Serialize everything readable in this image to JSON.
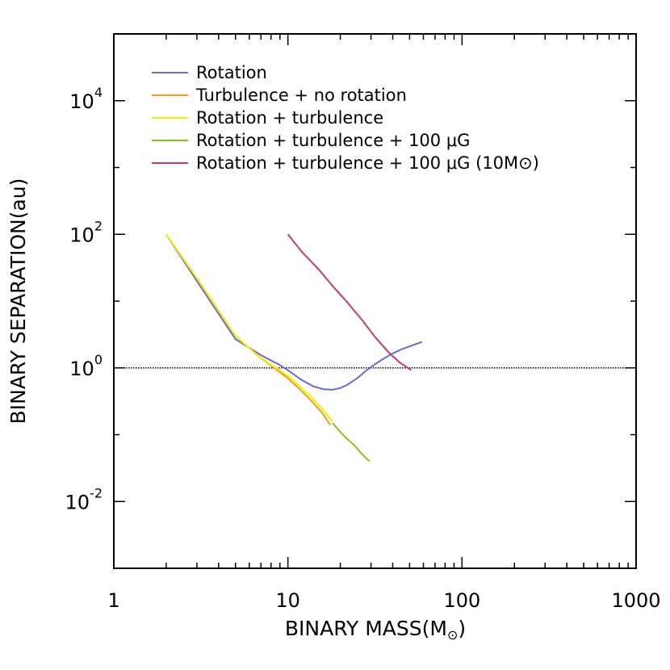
{
  "chart_data": {
    "type": "line",
    "xscale": "log",
    "yscale": "log",
    "xlim": [
      1,
      1000
    ],
    "ylim": [
      0.001,
      100000
    ],
    "xlabel": "BINARY MASS(M",
    "xlabel_symbol": "⊙",
    "xlabel_close": ")",
    "ylabel": "BINARY SEPARATION(au)",
    "x_tick_labels": [
      "1",
      "10",
      "100",
      "1000"
    ],
    "x_tick_values": [
      1,
      10,
      100,
      1000
    ],
    "y_tick_labels": [
      {
        "base": "10",
        "exp": "-2"
      },
      {
        "base": "10",
        "exp": "0"
      },
      {
        "base": "10",
        "exp": "2"
      },
      {
        "base": "10",
        "exp": "4"
      }
    ],
    "y_tick_values": [
      0.01,
      1,
      100,
      10000
    ],
    "reference_line": {
      "y": 1,
      "style": "dotted",
      "color": "#000000"
    },
    "legend_position": "top-left",
    "series": [
      {
        "name": "Rotation",
        "color": "#6a6ad2",
        "x": [
          2,
          3,
          5,
          7,
          9,
          10,
          12,
          14,
          16,
          18,
          20,
          22,
          25,
          28,
          30,
          35,
          40,
          45,
          50,
          55,
          59
        ],
        "y": [
          100,
          20,
          2.7,
          1.55,
          1.1,
          0.92,
          0.66,
          0.53,
          0.48,
          0.47,
          0.5,
          0.56,
          0.7,
          0.9,
          1.03,
          1.35,
          1.65,
          1.9,
          2.1,
          2.3,
          2.45
        ]
      },
      {
        "name": "Turbulence + no rotation",
        "color": "#ff9a10",
        "x": [
          2,
          3,
          5,
          7,
          10,
          12,
          14,
          16,
          17.5
        ],
        "y": [
          100,
          22,
          3,
          1.4,
          0.7,
          0.45,
          0.3,
          0.2,
          0.14
        ]
      },
      {
        "name": "Rotation + turbulence",
        "color": "#f0f000",
        "x": [
          2,
          3,
          5,
          7,
          10,
          12,
          14,
          16,
          18
        ],
        "y": [
          100,
          22,
          3,
          1.4,
          0.76,
          0.5,
          0.34,
          0.23,
          0.16
        ]
      },
      {
        "name": "Rotation + turbulence + 100 μG",
        "color": "#8cc218",
        "x": [
          18,
          20,
          22,
          24,
          26,
          28,
          29.5
        ],
        "y": [
          0.15,
          0.11,
          0.085,
          0.07,
          0.055,
          0.045,
          0.04
        ]
      },
      {
        "name": "Rotation + turbulence + 100 μG (10M⊙)",
        "color": "#c83c64",
        "x": [
          10,
          12,
          15,
          18,
          22,
          27,
          32,
          38,
          44,
          51
        ],
        "y": [
          100,
          55,
          30,
          17,
          9.5,
          5,
          2.8,
          1.7,
          1.2,
          0.93
        ]
      }
    ]
  }
}
